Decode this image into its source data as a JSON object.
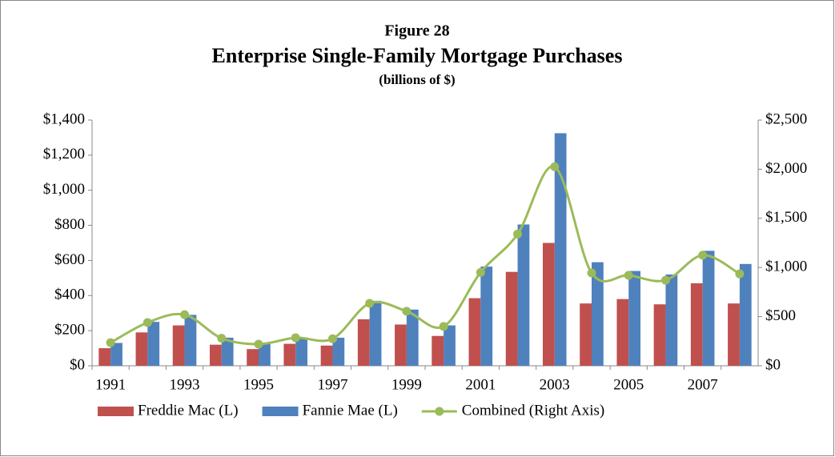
{
  "chart_data": {
    "type": "bar",
    "title": "Figure  28",
    "subtitle": "Enterprise Single-Family Mortgage Purchases",
    "note": "(billions of $)",
    "categories": [
      "1991",
      null,
      "1993",
      null,
      "1995",
      null,
      "1997",
      null,
      "1999",
      null,
      "2001",
      null,
      "2003",
      null,
      "2005",
      null,
      "2007",
      null
    ],
    "series": [
      {
        "name": "Freddie Mac (L)",
        "color": "#c0504d",
        "values": [
          100,
          190,
          230,
          120,
          95,
          125,
          115,
          265,
          235,
          170,
          385,
          535,
          700,
          355,
          380,
          350,
          470,
          355
        ]
      },
      {
        "name": "Fannie Mae (L)",
        "color": "#4f81bd",
        "values": [
          130,
          250,
          290,
          160,
          125,
          160,
          160,
          370,
          320,
          230,
          565,
          805,
          1325,
          590,
          540,
          520,
          655,
          580
        ]
      },
      {
        "name": "Combined (Right Axis)",
        "color": "#9bbb59",
        "axis": "y2",
        "type": "line",
        "values": [
          235,
          440,
          520,
          280,
          220,
          285,
          275,
          635,
          555,
          400,
          950,
          1340,
          2025,
          945,
          920,
          870,
          1125,
          935
        ]
      }
    ],
    "ylim": [
      0,
      1400
    ],
    "yticks": [
      {
        "value": 0,
        "label": "$0"
      },
      {
        "value": 200,
        "label": "$200"
      },
      {
        "value": 400,
        "label": "$400"
      },
      {
        "value": 600,
        "label": "$600"
      },
      {
        "value": 800,
        "label": "$800"
      },
      {
        "value": 1000,
        "label": "$1,000"
      },
      {
        "value": 1200,
        "label": "$1,200"
      },
      {
        "value": 1400,
        "label": "$1,400"
      }
    ],
    "y2lim": [
      0,
      2500
    ],
    "y2ticks": [
      {
        "value": 0,
        "label": "$0"
      },
      {
        "value": 500,
        "label": "$500"
      },
      {
        "value": 1000,
        "label": "$1,000"
      },
      {
        "value": 1500,
        "label": "$1,500"
      },
      {
        "value": 2000,
        "label": "$2,000"
      },
      {
        "value": 2500,
        "label": "$2,500"
      }
    ],
    "grid": false,
    "legend": "bottom"
  }
}
